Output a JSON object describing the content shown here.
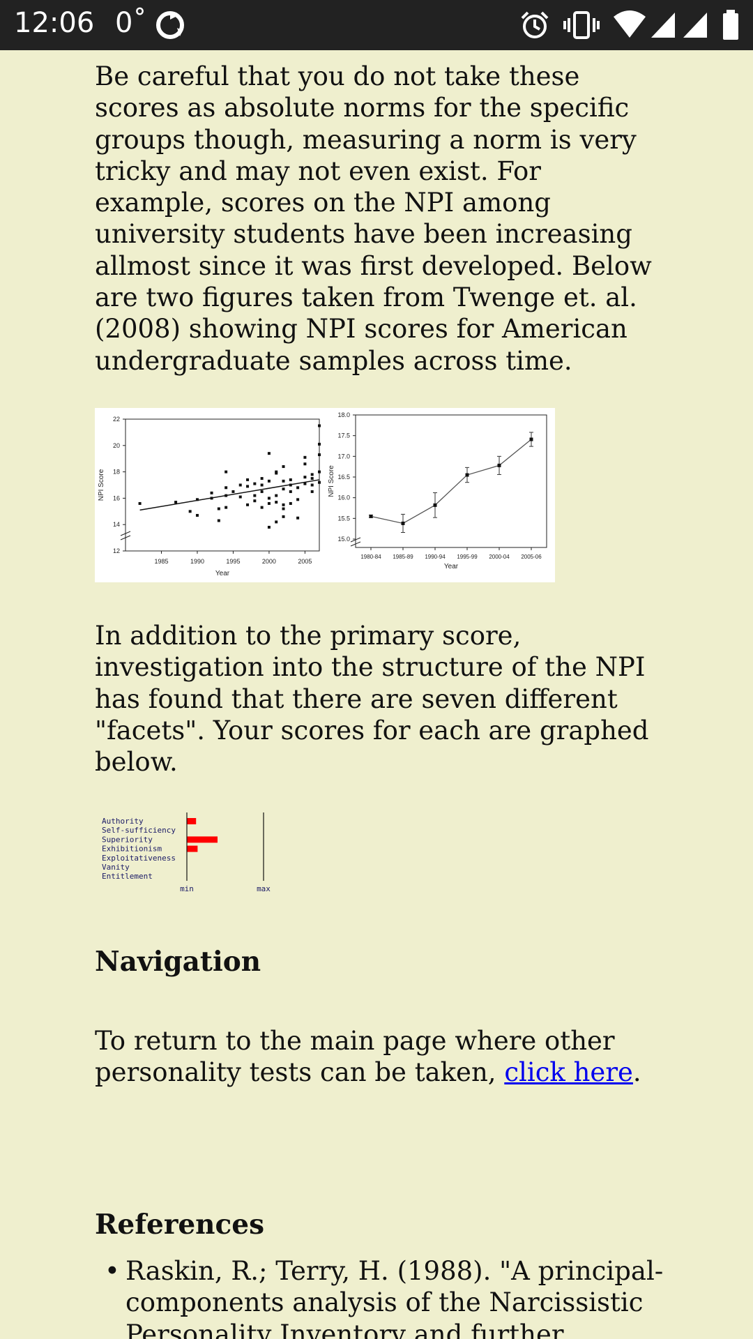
{
  "status_bar": {
    "time": "12:06",
    "temp": "0˚",
    "icons": [
      "sync-icon",
      "alarm-icon",
      "vibrate-icon",
      "wifi-icon",
      "signal-icon",
      "signal-icon",
      "battery-icon"
    ]
  },
  "article": {
    "paragraph1": "Be careful that you do not take these scores as absolute norms for the specific groups though, measuring a norm is very tricky and may not even exist. For example, scores on the NPI among university students have been increasing allmost since it was first developed. Below are two figures taken from Twenge et. al. (2008) showing NPI scores for American undergraduate samples across time.",
    "paragraph2": "In addition to the primary score, investigation into the structure of the NPI has found that there are seven different \"facets\". Your scores for each are graphed below.",
    "nav_heading": "Navigation",
    "nav_text_before": "To return to the main page where other personality tests can be taken, ",
    "nav_link": "click here",
    "nav_text_after": ".",
    "refs_heading": "References",
    "refs": [
      "Raskin, R.; Terry, H. (1988). \"A principal-components analysis of the Narcissistic Personality Inventory and further"
    ]
  },
  "chart_data": [
    {
      "type": "scatter",
      "title": "",
      "xlabel": "Year",
      "ylabel": "NPI Score",
      "xlim": [
        1980,
        2007
      ],
      "ylim": [
        12,
        22
      ],
      "xticks": [
        "1985",
        "1990",
        "1995",
        "2000",
        "2005"
      ],
      "yticks": [
        "12",
        "14",
        "16",
        "18",
        "20",
        "22"
      ],
      "points": [
        [
          1982,
          15.6
        ],
        [
          1987,
          15.7
        ],
        [
          1989,
          15.0
        ],
        [
          1990,
          14.7
        ],
        [
          1990,
          15.9
        ],
        [
          1992,
          16.0
        ],
        [
          1992,
          16.4
        ],
        [
          1993,
          15.2
        ],
        [
          1993,
          14.3
        ],
        [
          1994,
          15.3
        ],
        [
          1994,
          16.2
        ],
        [
          1994,
          16.8
        ],
        [
          1994,
          18.0
        ],
        [
          1995,
          16.5
        ],
        [
          1996,
          16.1
        ],
        [
          1996,
          17.0
        ],
        [
          1997,
          15.5
        ],
        [
          1997,
          16.9
        ],
        [
          1997,
          17.4
        ],
        [
          1998,
          16.2
        ],
        [
          1998,
          15.8
        ],
        [
          1998,
          17.1
        ],
        [
          1999,
          16.5
        ],
        [
          1999,
          15.3
        ],
        [
          1999,
          17.0
        ],
        [
          1999,
          17.5
        ],
        [
          2000,
          19.4
        ],
        [
          2000,
          13.8
        ],
        [
          2000,
          15.6
        ],
        [
          2000,
          16.0
        ],
        [
          2000,
          17.3
        ],
        [
          2001,
          14.2
        ],
        [
          2001,
          15.7
        ],
        [
          2001,
          16.2
        ],
        [
          2001,
          17.9
        ],
        [
          2001,
          18.0
        ],
        [
          2002,
          14.6
        ],
        [
          2002,
          15.2
        ],
        [
          2002,
          15.5
        ],
        [
          2002,
          16.7
        ],
        [
          2002,
          17.3
        ],
        [
          2002,
          18.4
        ],
        [
          2003,
          15.6
        ],
        [
          2003,
          16.5
        ],
        [
          2003,
          17.0
        ],
        [
          2003,
          17.4
        ],
        [
          2004,
          14.5
        ],
        [
          2004,
          15.9
        ],
        [
          2004,
          16.8
        ],
        [
          2005,
          17.1
        ],
        [
          2005,
          17.6
        ],
        [
          2005,
          18.6
        ],
        [
          2005,
          19.1
        ],
        [
          2006,
          16.5
        ],
        [
          2006,
          17.0
        ],
        [
          2006,
          17.5
        ],
        [
          2006,
          17.8
        ],
        [
          2007,
          17.2
        ],
        [
          2007,
          18.0
        ],
        [
          2007,
          19.3
        ],
        [
          2007,
          20.1
        ],
        [
          2007,
          21.5
        ]
      ],
      "trend": [
        [
          1982,
          15.1
        ],
        [
          2007,
          17.4
        ]
      ]
    },
    {
      "type": "line",
      "title": "",
      "xlabel": "Year",
      "ylabel": "NPI Score",
      "ylim": [
        15.0,
        18.0
      ],
      "yticks": [
        "15.0",
        "15.5",
        "16.0",
        "16.5",
        "17.0",
        "17.5",
        "18.0"
      ],
      "categories": [
        "1980-84",
        "1985-89",
        "1990-94",
        "1995-99",
        "2000-04",
        "2005-06"
      ],
      "values": [
        15.55,
        15.38,
        15.82,
        16.55,
        16.78,
        17.41
      ],
      "errors": [
        0.03,
        0.22,
        0.3,
        0.18,
        0.22,
        0.17
      ]
    },
    {
      "type": "bar",
      "title": "",
      "categories": [
        "Authority",
        "Self-sufficiency",
        "Superiority",
        "Exhibitionism",
        "Exploitativeness",
        "Vanity",
        "Entitlement"
      ],
      "values": [
        0.12,
        0.0,
        0.4,
        0.14,
        0.0,
        0.0,
        0.0
      ],
      "xlabel_min": "min",
      "xlabel_max": "max",
      "color": "#ff0000"
    }
  ]
}
